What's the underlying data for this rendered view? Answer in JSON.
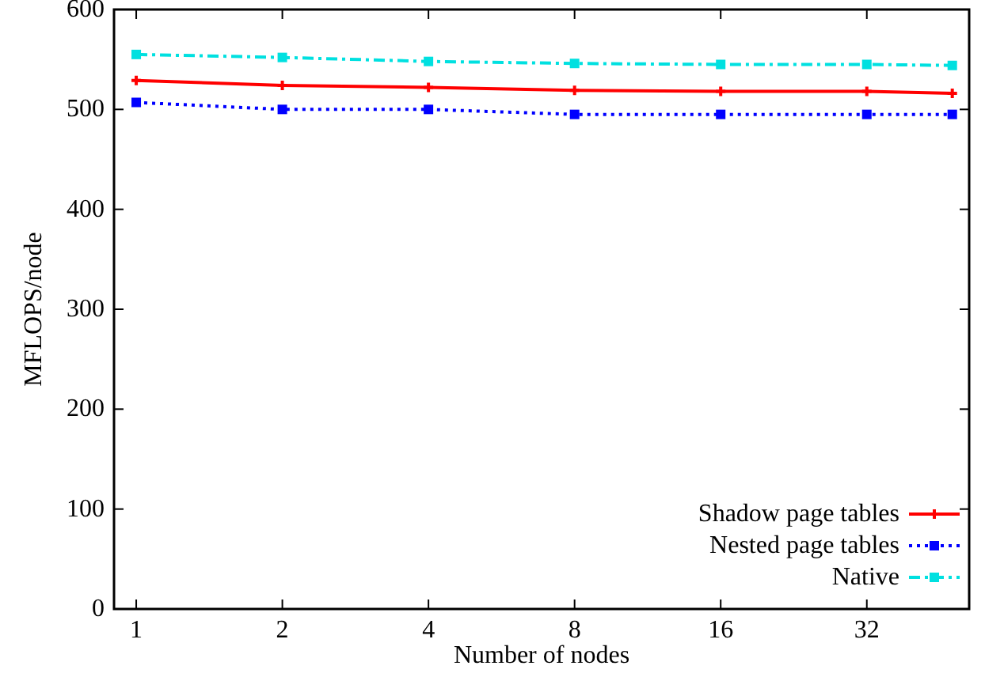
{
  "chart_data": {
    "type": "line",
    "xlabel": "Number of nodes",
    "ylabel": "MFLOPS/node",
    "x": [
      1,
      2,
      4,
      8,
      16,
      32,
      48
    ],
    "log": "x",
    "xlim": [
      0.9,
      52
    ],
    "xticks": [
      1,
      2,
      4,
      8,
      16,
      32
    ],
    "ylim": [
      0,
      600
    ],
    "yticks": [
      0,
      100,
      200,
      300,
      400,
      500,
      600
    ],
    "legend": "bottom right",
    "grid": false,
    "series": [
      {
        "name": "Shadow page tables",
        "color": "#ff0000",
        "marker": "cross",
        "line_style": "solid",
        "values": [
          529,
          524,
          522,
          519,
          518,
          518,
          516
        ]
      },
      {
        "name": "Nested page tables",
        "color": "#0000ff",
        "marker": "square",
        "line_style": "dotted",
        "values": [
          507,
          500,
          500,
          495,
          495,
          495,
          495
        ]
      },
      {
        "name": "Native",
        "color": "#00e0e0",
        "marker": "square",
        "line_style": "dashed",
        "values": [
          555,
          552,
          548,
          546,
          545,
          545,
          544
        ]
      }
    ]
  }
}
